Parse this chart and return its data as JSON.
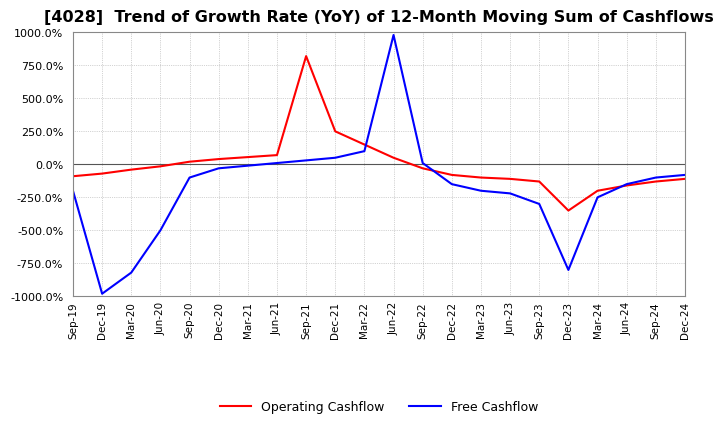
{
  "title": "[4028]  Trend of Growth Rate (YoY) of 12-Month Moving Sum of Cashflows",
  "title_fontsize": 11.5,
  "background_color": "#ffffff",
  "grid_color": "#aaaaaa",
  "ylim": [
    -1000,
    1000
  ],
  "yticks": [
    -1000,
    -750,
    -500,
    -250,
    0,
    250,
    500,
    750,
    1000
  ],
  "x_labels": [
    "Sep-19",
    "Dec-19",
    "Mar-20",
    "Jun-20",
    "Sep-20",
    "Dec-20",
    "Mar-21",
    "Jun-21",
    "Sep-21",
    "Dec-21",
    "Mar-22",
    "Jun-22",
    "Sep-22",
    "Dec-22",
    "Mar-23",
    "Jun-23",
    "Sep-23",
    "Dec-23",
    "Mar-24",
    "Jun-24",
    "Sep-24",
    "Dec-24"
  ],
  "operating_cashflow": [
    -90,
    -70,
    -40,
    -15,
    20,
    40,
    55,
    70,
    820,
    250,
    150,
    50,
    -30,
    -80,
    -100,
    -110,
    -130,
    -350,
    -200,
    -160,
    -130,
    -110
  ],
  "free_cashflow": [
    -200,
    -980,
    -820,
    -500,
    -100,
    -30,
    -10,
    10,
    30,
    50,
    100,
    980,
    10,
    -150,
    -200,
    -220,
    -300,
    -800,
    -250,
    -150,
    -100,
    -80
  ],
  "operating_color": "#ff0000",
  "free_color": "#0000ff",
  "line_width": 1.5
}
